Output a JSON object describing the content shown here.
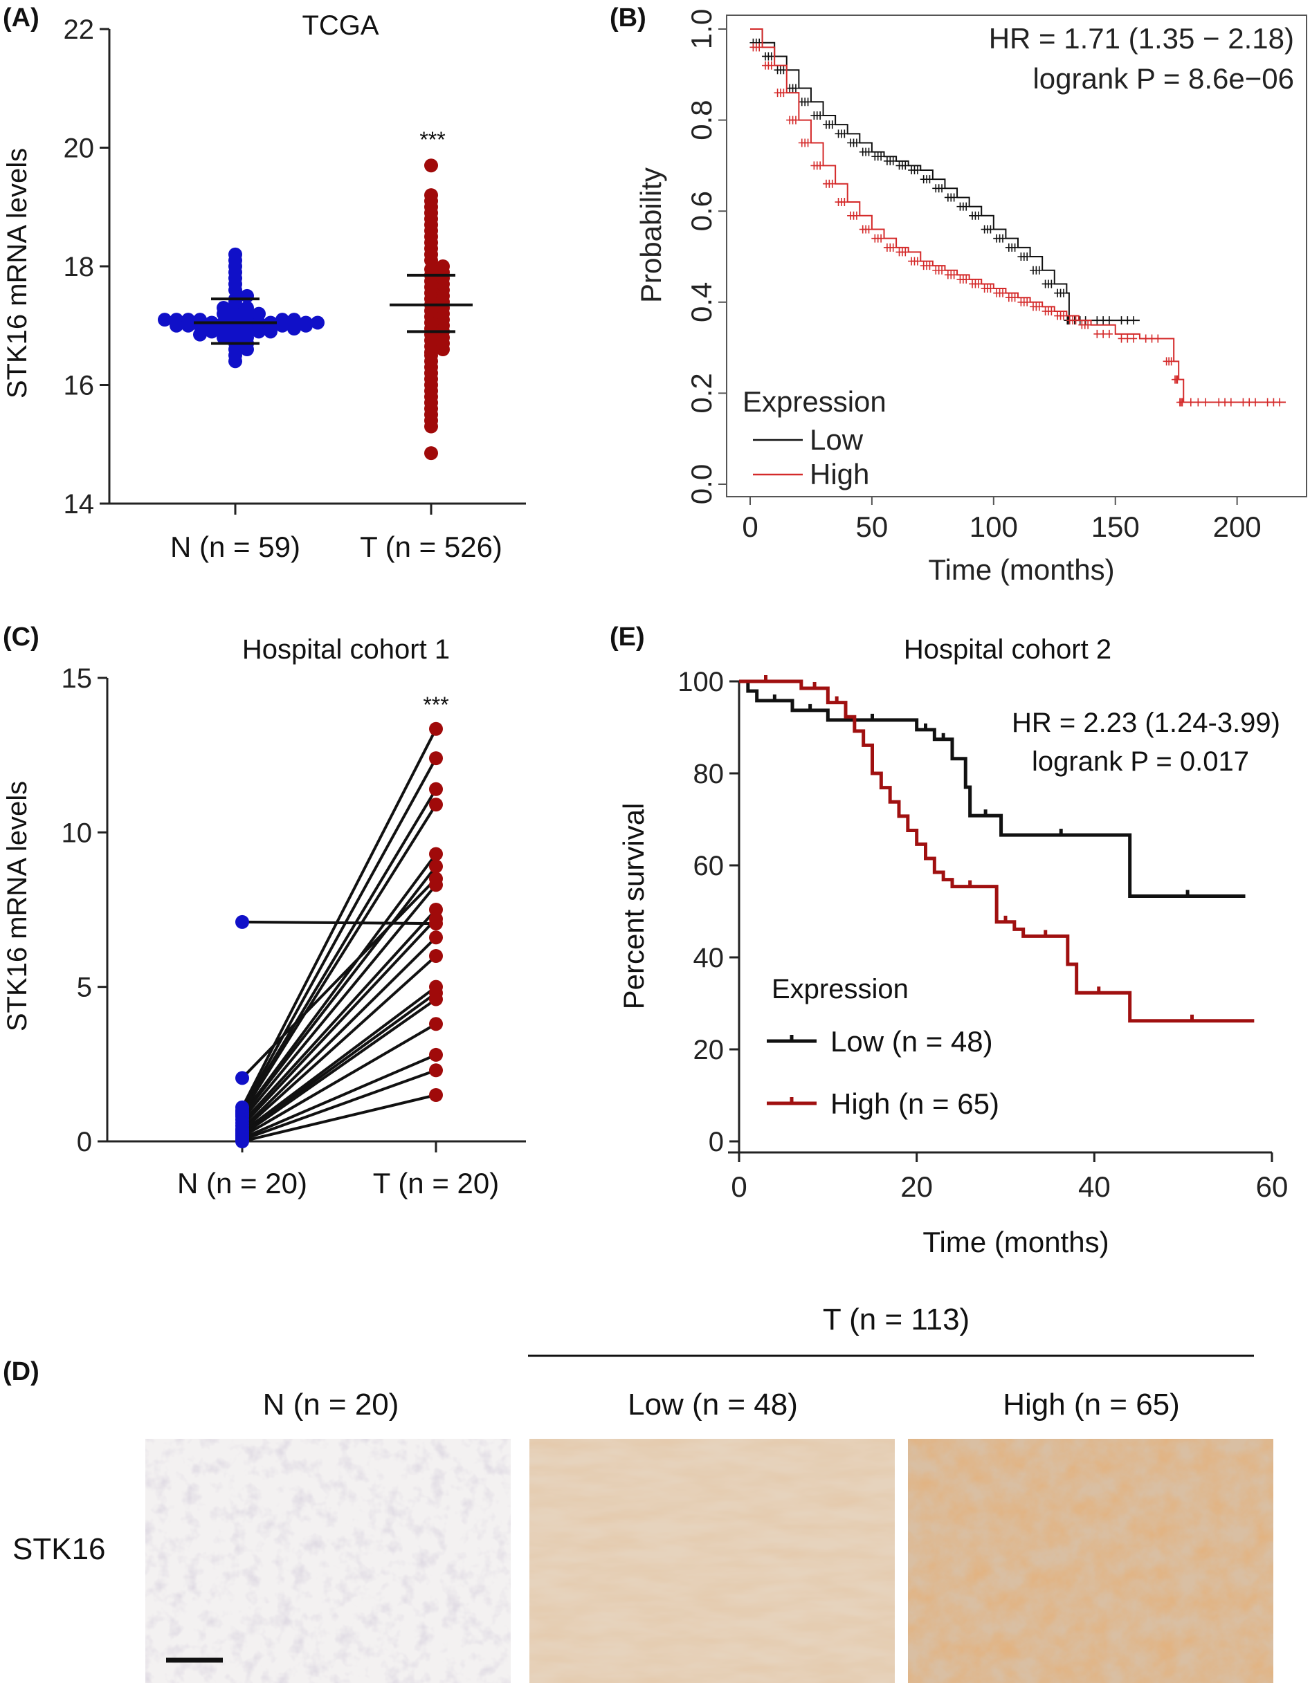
{
  "panel_labels": {
    "a": "(A)",
    "b": "(B)",
    "c": "(C)",
    "d": "(D)",
    "e": "(E)"
  },
  "colors": {
    "normal": "#1010c8",
    "tumor": "#a00a0a",
    "km_low": "#111111",
    "km_high_b": "#d42a2a",
    "km_high_e": "#a01010",
    "axis": "#222222"
  },
  "chart_data": [
    {
      "id": "A",
      "type": "scatter",
      "title": "TCGA",
      "ylabel": "STK16 mRNA levels",
      "xlabel": "",
      "categories": [
        "N (n = 59)",
        "T (n = 526)"
      ],
      "ylim": [
        14,
        22
      ],
      "yticks": [
        14,
        16,
        18,
        20,
        22
      ],
      "significance": "***",
      "summary": [
        {
          "name": "N",
          "mean": 17.05,
          "sd_low": 16.7,
          "sd_high": 17.45
        },
        {
          "name": "T",
          "mean": 17.35,
          "sd_low": 16.9,
          "sd_high": 17.85
        }
      ],
      "series": [
        {
          "name": "N",
          "values": [
            16.4,
            16.5,
            16.6,
            16.6,
            16.7,
            16.7,
            16.75,
            16.8,
            16.8,
            16.85,
            16.85,
            16.9,
            16.9,
            16.9,
            16.95,
            16.95,
            16.95,
            17.0,
            17.0,
            17.0,
            17.0,
            17.0,
            17.0,
            17.05,
            17.05,
            17.05,
            17.05,
            17.05,
            17.05,
            17.1,
            17.1,
            17.1,
            17.1,
            17.1,
            17.15,
            17.15,
            17.2,
            17.2,
            17.25,
            17.3,
            17.3,
            17.4,
            17.45,
            17.5,
            17.6,
            17.7,
            17.8,
            17.9,
            18.0,
            18.1,
            18.2,
            16.95,
            17.0,
            17.05,
            16.9,
            17.1,
            16.85,
            17.0,
            17.05
          ]
        },
        {
          "name": "T",
          "values": [
            14.85,
            15.3,
            15.4,
            15.5,
            15.6,
            15.7,
            15.8,
            15.9,
            16.0,
            16.1,
            16.2,
            16.3,
            16.4,
            16.5,
            16.55,
            16.6,
            16.65,
            16.7,
            16.75,
            16.8,
            16.85,
            16.9,
            16.95,
            17.0,
            17.05,
            17.1,
            17.15,
            17.2,
            17.25,
            17.3,
            17.35,
            17.4,
            17.45,
            17.5,
            17.55,
            17.6,
            17.65,
            17.7,
            17.75,
            17.8,
            17.85,
            17.9,
            17.95,
            18.0,
            18.1,
            18.2,
            18.3,
            18.4,
            18.5,
            18.6,
            18.7,
            18.8,
            18.9,
            19.0,
            19.1,
            19.2,
            19.7
          ]
        }
      ]
    },
    {
      "id": "B",
      "type": "line",
      "title": "",
      "xlabel": "Time (months)",
      "ylabel": "Probability",
      "xlim": [
        0,
        220
      ],
      "ylim": [
        0,
        1
      ],
      "xticks": [
        0,
        50,
        100,
        150,
        200
      ],
      "yticks": [
        "0.0",
        "0.2",
        "0.4",
        "0.6",
        "0.8",
        "1.0"
      ],
      "annotations": [
        "HR = 1.71 (1.35 − 2.18)",
        "logrank P = 8.6e−06"
      ],
      "legend_title": "Expression",
      "series": [
        {
          "name": "Low",
          "x": [
            0,
            5,
            10,
            15,
            20,
            25,
            30,
            35,
            40,
            45,
            50,
            55,
            60,
            65,
            70,
            75,
            80,
            85,
            90,
            95,
            100,
            105,
            110,
            115,
            120,
            125,
            130,
            131,
            140,
            150,
            160
          ],
          "y": [
            1.0,
            0.97,
            0.94,
            0.91,
            0.87,
            0.84,
            0.81,
            0.79,
            0.77,
            0.75,
            0.73,
            0.72,
            0.71,
            0.7,
            0.69,
            0.67,
            0.65,
            0.63,
            0.61,
            0.59,
            0.56,
            0.54,
            0.52,
            0.5,
            0.47,
            0.44,
            0.42,
            0.36,
            0.36,
            0.36,
            0.36
          ]
        },
        {
          "name": "High",
          "x": [
            0,
            5,
            10,
            15,
            20,
            25,
            30,
            35,
            40,
            45,
            50,
            55,
            60,
            65,
            70,
            75,
            80,
            85,
            90,
            95,
            100,
            105,
            110,
            115,
            120,
            125,
            130,
            135,
            140,
            150,
            160,
            170,
            174,
            176,
            178,
            190,
            200,
            210,
            220
          ],
          "y": [
            1.0,
            0.96,
            0.92,
            0.86,
            0.8,
            0.75,
            0.7,
            0.66,
            0.62,
            0.59,
            0.56,
            0.54,
            0.52,
            0.51,
            0.49,
            0.48,
            0.47,
            0.46,
            0.45,
            0.44,
            0.43,
            0.42,
            0.41,
            0.4,
            0.39,
            0.38,
            0.37,
            0.36,
            0.35,
            0.33,
            0.32,
            0.32,
            0.27,
            0.23,
            0.18,
            0.18,
            0.18,
            0.18,
            0.18
          ]
        }
      ]
    },
    {
      "id": "C",
      "type": "line",
      "title": "Hospital cohort 1",
      "ylabel": "STK16 mRNA levels",
      "xlabel": "",
      "categories": [
        "N (n = 20)",
        "T (n = 20)"
      ],
      "ylim": [
        0,
        15
      ],
      "yticks": [
        0,
        5,
        10,
        15
      ],
      "significance": "***",
      "pairs": [
        [
          7.1,
          7.05
        ],
        [
          2.05,
          8.5
        ],
        [
          1.1,
          13.35
        ],
        [
          1.0,
          12.4
        ],
        [
          0.95,
          11.4
        ],
        [
          0.9,
          10.9
        ],
        [
          0.85,
          9.3
        ],
        [
          0.8,
          8.9
        ],
        [
          0.7,
          8.3
        ],
        [
          0.6,
          7.5
        ],
        [
          0.5,
          7.2
        ],
        [
          0.4,
          6.6
        ],
        [
          0.35,
          6.0
        ],
        [
          0.3,
          5.0
        ],
        [
          0.25,
          4.8
        ],
        [
          0.2,
          4.6
        ],
        [
          0.15,
          3.8
        ],
        [
          0.1,
          2.8
        ],
        [
          0.05,
          2.3
        ],
        [
          0.0,
          1.5
        ]
      ]
    },
    {
      "id": "E",
      "type": "line",
      "title": "Hospital cohort 2",
      "xlabel": "Time (months)",
      "ylabel": "Percent survival",
      "xlim": [
        0,
        60
      ],
      "ylim": [
        0,
        100
      ],
      "xticks": [
        0,
        20,
        40,
        60
      ],
      "yticks": [
        0,
        20,
        40,
        60,
        80,
        100
      ],
      "annotations": [
        "HR = 2.23 (1.24-3.99)",
        "logrank P = 0.017"
      ],
      "legend_title": "Expression",
      "series": [
        {
          "name": "Low (n = 48)",
          "x": [
            0,
            1,
            2,
            6,
            10,
            20,
            22,
            24,
            25.5,
            26,
            29.5,
            43,
            44,
            57
          ],
          "y": [
            100,
            97.9,
            95.8,
            93.7,
            91.6,
            89.5,
            87.4,
            83.2,
            77,
            70.8,
            66.6,
            66.6,
            53.3,
            53.3
          ]
        },
        {
          "name": "High (n = 65)",
          "x": [
            0,
            6,
            7,
            10,
            12,
            13,
            14,
            15,
            16,
            17,
            18,
            19,
            20,
            21,
            22,
            23,
            24,
            28,
            29,
            31,
            32,
            37,
            38,
            43,
            44,
            58
          ],
          "y": [
            100,
            100,
            98.5,
            95.4,
            92.3,
            89.2,
            86.1,
            80,
            76.9,
            73.8,
            70.7,
            67.6,
            64.6,
            61.5,
            58.5,
            56.9,
            55.4,
            55.4,
            47.7,
            46.1,
            44.6,
            38.5,
            32.3,
            32.3,
            26.2,
            26.2
          ]
        }
      ]
    }
  ],
  "panel_d": {
    "group_header": "T (n = 113)",
    "column_labels": [
      "N (n = 20)",
      "Low (n = 48)",
      "High (n = 65)"
    ],
    "row_label": "STK16"
  }
}
